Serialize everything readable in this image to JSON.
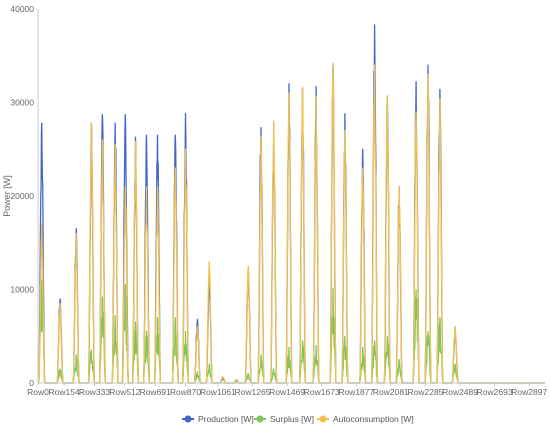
{
  "chart_data": {
    "type": "line",
    "title": "",
    "xlabel": "",
    "ylabel": "Power [W]",
    "ylim": [
      0,
      40000
    ],
    "y_ticks": [
      0,
      10000,
      20000,
      30000,
      40000
    ],
    "x_range": [
      0,
      2990
    ],
    "x_tick_labels": [
      "Row0",
      "Row154",
      "Row333",
      "Row512",
      "Row691",
      "Row870",
      "Row1061",
      "Row1265",
      "Row1469",
      "Row1673",
      "Row1877",
      "Row2081",
      "Row2285",
      "Row2489",
      "Row2693",
      "Row2897"
    ],
    "x_tick_positions": [
      0,
      154,
      333,
      512,
      691,
      870,
      1061,
      1265,
      1469,
      1673,
      1877,
      2081,
      2285,
      2489,
      2693,
      2897
    ],
    "grid": false,
    "legend_position": "bottom",
    "series": [
      {
        "name": "Production [W]",
        "color": "#4466cc",
        "days": [
          {
            "c": 22,
            "peak": 27800
          },
          {
            "c": 130,
            "peak": 9000
          },
          {
            "c": 225,
            "peak": 16500
          },
          {
            "c": 315,
            "peak": 27800
          },
          {
            "c": 380,
            "peak": 28700
          },
          {
            "c": 455,
            "peak": 27800
          },
          {
            "c": 515,
            "peak": 28700
          },
          {
            "c": 575,
            "peak": 26300
          },
          {
            "c": 640,
            "peak": 26500
          },
          {
            "c": 705,
            "peak": 26500
          },
          {
            "c": 810,
            "peak": 26500
          },
          {
            "c": 870,
            "peak": 28800
          },
          {
            "c": 940,
            "peak": 6800
          },
          {
            "c": 1010,
            "peak": 11200
          },
          {
            "c": 1090,
            "peak": 500
          },
          {
            "c": 1170,
            "peak": 300
          },
          {
            "c": 1240,
            "peak": 12300
          },
          {
            "c": 1315,
            "peak": 27300
          },
          {
            "c": 1390,
            "peak": 27800
          },
          {
            "c": 1480,
            "peak": 32000
          },
          {
            "c": 1560,
            "peak": 31600
          },
          {
            "c": 1640,
            "peak": 31700
          },
          {
            "c": 1740,
            "peak": 34000
          },
          {
            "c": 1810,
            "peak": 28800
          },
          {
            "c": 1915,
            "peak": 25000
          },
          {
            "c": 1985,
            "peak": 38300
          },
          {
            "c": 2060,
            "peak": 30700
          },
          {
            "c": 2130,
            "peak": 21000
          },
          {
            "c": 2230,
            "peak": 32200
          },
          {
            "c": 2300,
            "peak": 34000
          },
          {
            "c": 2370,
            "peak": 31400
          },
          {
            "c": 2460,
            "peak": 6000
          }
        ]
      },
      {
        "name": "Surplus [W]",
        "color": "#7dc85a",
        "days": [
          {
            "c": 22,
            "peak": 11000
          },
          {
            "c": 130,
            "peak": 1500
          },
          {
            "c": 225,
            "peak": 3000
          },
          {
            "c": 315,
            "peak": 3500
          },
          {
            "c": 380,
            "peak": 9200
          },
          {
            "c": 455,
            "peak": 7200
          },
          {
            "c": 515,
            "peak": 10500
          },
          {
            "c": 575,
            "peak": 6500
          },
          {
            "c": 640,
            "peak": 5500
          },
          {
            "c": 705,
            "peak": 7000
          },
          {
            "c": 810,
            "peak": 7000
          },
          {
            "c": 870,
            "peak": 5500
          },
          {
            "c": 940,
            "peak": 1200
          },
          {
            "c": 1010,
            "peak": 2000
          },
          {
            "c": 1090,
            "peak": 0
          },
          {
            "c": 1170,
            "peak": 0
          },
          {
            "c": 1240,
            "peak": 1000
          },
          {
            "c": 1315,
            "peak": 3000
          },
          {
            "c": 1390,
            "peak": 1500
          },
          {
            "c": 1480,
            "peak": 3800
          },
          {
            "c": 1560,
            "peak": 4500
          },
          {
            "c": 1640,
            "peak": 4000
          },
          {
            "c": 1740,
            "peak": 10100
          },
          {
            "c": 1810,
            "peak": 5000
          },
          {
            "c": 1915,
            "peak": 3800
          },
          {
            "c": 1985,
            "peak": 4500
          },
          {
            "c": 2060,
            "peak": 5000
          },
          {
            "c": 2130,
            "peak": 2500
          },
          {
            "c": 2230,
            "peak": 10000
          },
          {
            "c": 2300,
            "peak": 5500
          },
          {
            "c": 2370,
            "peak": 7000
          },
          {
            "c": 2460,
            "peak": 2000
          }
        ]
      },
      {
        "name": "Autoconsumption [W]",
        "color": "#f2c14e",
        "days": [
          {
            "c": 22,
            "peak": 17000
          },
          {
            "c": 130,
            "peak": 8500
          },
          {
            "c": 225,
            "peak": 16000
          },
          {
            "c": 315,
            "peak": 27800
          },
          {
            "c": 380,
            "peak": 26000
          },
          {
            "c": 455,
            "peak": 25500
          },
          {
            "c": 515,
            "peak": 21000
          },
          {
            "c": 575,
            "peak": 25800
          },
          {
            "c": 640,
            "peak": 21000
          },
          {
            "c": 705,
            "peak": 21000
          },
          {
            "c": 810,
            "peak": 23000
          },
          {
            "c": 870,
            "peak": 25000
          },
          {
            "c": 940,
            "peak": 6000
          },
          {
            "c": 1010,
            "peak": 13000
          },
          {
            "c": 1090,
            "peak": 700
          },
          {
            "c": 1170,
            "peak": 400
          },
          {
            "c": 1240,
            "peak": 12500
          },
          {
            "c": 1315,
            "peak": 26300
          },
          {
            "c": 1390,
            "peak": 28000
          },
          {
            "c": 1480,
            "peak": 31000
          },
          {
            "c": 1560,
            "peak": 31600
          },
          {
            "c": 1640,
            "peak": 30600
          },
          {
            "c": 1740,
            "peak": 34200
          },
          {
            "c": 1810,
            "peak": 27000
          },
          {
            "c": 1915,
            "peak": 23000
          },
          {
            "c": 1985,
            "peak": 34000
          },
          {
            "c": 2060,
            "peak": 30700
          },
          {
            "c": 2130,
            "peak": 21000
          },
          {
            "c": 2230,
            "peak": 29000
          },
          {
            "c": 2300,
            "peak": 33000
          },
          {
            "c": 2370,
            "peak": 30400
          },
          {
            "c": 2460,
            "peak": 6000
          }
        ]
      }
    ]
  }
}
